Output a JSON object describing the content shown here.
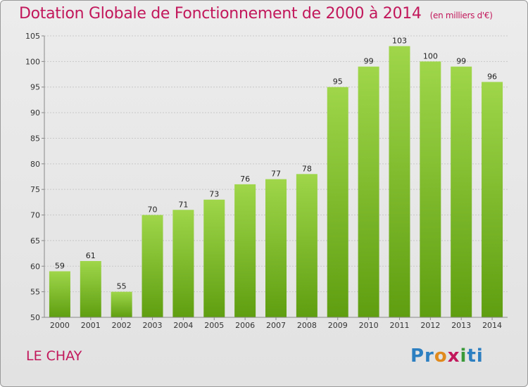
{
  "title": "Dotation Globale de Fonctionnement de 2000 à 2014",
  "unit": "(en milliers d'€)",
  "location": "LE CHAY",
  "logo": [
    "Pr",
    "o",
    "x",
    "i",
    "ti"
  ],
  "chart_data": {
    "type": "bar",
    "categories": [
      "2000",
      "2001",
      "2002",
      "2003",
      "2004",
      "2005",
      "2006",
      "2007",
      "2008",
      "2009",
      "2010",
      "2011",
      "2012",
      "2013",
      "2014"
    ],
    "values": [
      59,
      61,
      55,
      70,
      71,
      73,
      76,
      77,
      78,
      95,
      99,
      103,
      100,
      99,
      96
    ],
    "ylim": [
      50,
      105
    ],
    "yticks": [
      50,
      55,
      60,
      65,
      70,
      75,
      80,
      85,
      90,
      95,
      100,
      105
    ],
    "grid": true,
    "bar_color": "#7dc21e",
    "title": "Dotation Globale de Fonctionnement de 2000 à 2014"
  }
}
